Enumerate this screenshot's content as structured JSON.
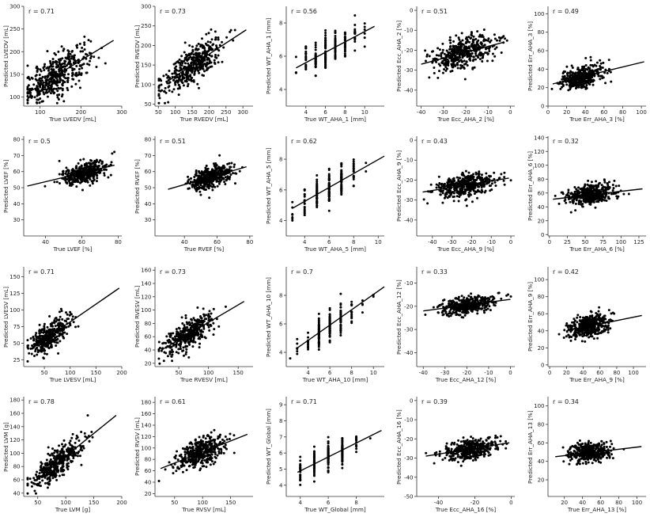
{
  "colors": {
    "point": "#000000",
    "line": "#000000",
    "axis": "#333333",
    "text": "#222222"
  },
  "chart_data": [
    {
      "type": "scatter",
      "r_label": "r = 0.71",
      "xlabel": "True LVEDV [mL]",
      "ylabel": "Predicted LVEDV [mL]",
      "xlim": [
        60,
        300
      ],
      "ylim": [
        80,
        300
      ],
      "xticks": [
        100,
        200,
        300
      ],
      "yticks": [
        100,
        150,
        200,
        250,
        300
      ],
      "n_points": 420,
      "x_center": 140,
      "x_spread": 40,
      "resid_sd": 22,
      "fit_line": {
        "x": [
          75,
          280
        ],
        "y": [
          112,
          225
        ]
      }
    },
    {
      "type": "scatter",
      "r_label": "r = 0.73",
      "xlabel": "True RVEDV [mL]",
      "ylabel": "Predicted RVEDV [mL]",
      "xlim": [
        40,
        330
      ],
      "ylim": [
        45,
        300
      ],
      "xticks": [
        50,
        100,
        150,
        200,
        250,
        300
      ],
      "yticks": [
        50,
        100,
        150,
        200,
        250,
        300
      ],
      "n_points": 420,
      "x_center": 150,
      "x_spread": 45,
      "resid_sd": 22,
      "fit_line": {
        "x": [
          80,
          310
        ],
        "y": [
          110,
          240
        ]
      }
    },
    {
      "type": "scatter",
      "r_label": "r = 0.56",
      "xlabel": "True WT_AHA_1 [mm]",
      "ylabel": "Predicted WT_AHA_1 [mm]",
      "xlim": [
        2,
        12
      ],
      "ylim": [
        3,
        9
      ],
      "xticks": [
        4,
        6,
        8,
        10
      ],
      "yticks": [
        4,
        6,
        8
      ],
      "n_points": 220,
      "x_center": 6.5,
      "x_spread": 1.6,
      "resid_sd": 0.5,
      "discrete_x": true,
      "fit_line": {
        "x": [
          3,
          11
        ],
        "y": [
          5.3,
          7.8
        ]
      }
    },
    {
      "type": "scatter",
      "r_label": "r = 0.51",
      "xlabel": "True Ecc_AHA_2 [%]",
      "ylabel": "Predicted Ecc_AHA_2 [%]",
      "xlim": [
        -42,
        2
      ],
      "ylim": [
        -48,
        2
      ],
      "xticks": [
        -40,
        -30,
        -20,
        -10,
        0
      ],
      "yticks": [
        -40,
        -30,
        -20,
        -10,
        0
      ],
      "n_points": 420,
      "x_center": -21,
      "x_spread": 7,
      "resid_sd": 4,
      "fit_line": {
        "x": [
          -40,
          -3
        ],
        "y": [
          -27,
          -16
        ]
      }
    },
    {
      "type": "scatter",
      "r_label": "r = 0.49",
      "xlabel": "True Err_AHA_3 [%]",
      "ylabel": "Predicted Err_AHA_3 [%]",
      "xlim": [
        0,
        105
      ],
      "ylim": [
        0,
        108
      ],
      "xticks": [
        0,
        20,
        40,
        60,
        80,
        100
      ],
      "yticks": [
        0,
        20,
        40,
        60,
        80,
        100
      ],
      "n_points": 420,
      "x_center": 35,
      "x_spread": 11,
      "resid_sd": 6,
      "fit_line": {
        "x": [
          5,
          103
        ],
        "y": [
          24,
          48
        ]
      }
    },
    {
      "type": "scatter",
      "r_label": "r = 0.5",
      "xlabel": "True LVEF [%]",
      "ylabel": "Predicted LVEF [%]",
      "xlim": [
        28,
        82
      ],
      "ylim": [
        20,
        82
      ],
      "xticks": [
        40,
        60,
        80
      ],
      "yticks": [
        30,
        40,
        50,
        60,
        70,
        80
      ],
      "n_points": 420,
      "x_center": 61,
      "x_spread": 6,
      "resid_sd": 3,
      "fit_line": {
        "x": [
          30,
          78
        ],
        "y": [
          51,
          64
        ]
      }
    },
    {
      "type": "scatter",
      "r_label": "r = 0.51",
      "xlabel": "True RVEF [%]",
      "ylabel": "Predicted RVEF [%]",
      "xlim": [
        22,
        82
      ],
      "ylim": [
        20,
        82
      ],
      "xticks": [
        40,
        60,
        80
      ],
      "yticks": [
        30,
        40,
        50,
        60,
        70,
        80
      ],
      "n_points": 420,
      "x_center": 56,
      "x_spread": 6,
      "resid_sd": 3,
      "fit_line": {
        "x": [
          30,
          78
        ],
        "y": [
          49,
          63
        ]
      }
    },
    {
      "type": "scatter",
      "r_label": "r = 0.62",
      "xlabel": "True WT_AHA_5 [mm]",
      "ylabel": "Predicted WT_AHA_5 [mm]",
      "xlim": [
        2.5,
        10.5
      ],
      "ylim": [
        3,
        9.5
      ],
      "xticks": [
        4,
        6,
        8,
        10
      ],
      "yticks": [
        4,
        6,
        8
      ],
      "n_points": 220,
      "x_center": 6,
      "x_spread": 1.2,
      "resid_sd": 0.5,
      "discrete_x": true,
      "fit_line": {
        "x": [
          3,
          10.5
        ],
        "y": [
          4.8,
          8.2
        ]
      }
    },
    {
      "type": "scatter",
      "r_label": "r = 0.43",
      "xlabel": "True Ecc_AHA_9 [%]",
      "ylabel": "Predicted Ecc_AHA_9 [%]",
      "xlim": [
        -48,
        2
      ],
      "ylim": [
        -48,
        2
      ],
      "xticks": [
        -40,
        -30,
        -20,
        -10,
        0
      ],
      "yticks": [
        -40,
        -30,
        -20,
        -10,
        0
      ],
      "n_points": 420,
      "x_center": -23,
      "x_spread": 7,
      "resid_sd": 3,
      "fit_line": {
        "x": [
          -45,
          -1
        ],
        "y": [
          -26,
          -19
        ]
      }
    },
    {
      "type": "scatter",
      "r_label": "r = 0.32",
      "xlabel": "True Err_AHA_6 [%]",
      "ylabel": "Predicted Err_AHA_6 [%]",
      "xlim": [
        -2,
        135
      ],
      "ylim": [
        -2,
        142
      ],
      "xticks": [
        0,
        25,
        50,
        75,
        100,
        125
      ],
      "yticks": [
        0,
        20,
        40,
        60,
        80,
        100,
        120,
        140
      ],
      "n_points": 420,
      "x_center": 58,
      "x_spread": 16,
      "resid_sd": 7,
      "fit_line": {
        "x": [
          5,
          130
        ],
        "y": [
          51,
          66
        ]
      }
    },
    {
      "type": "scatter",
      "r_label": "r = 0.71",
      "xlabel": "True LVESV [mL]",
      "ylabel": "Predicted LVESV [mL]",
      "xlim": [
        10,
        200
      ],
      "ylim": [
        15,
        165
      ],
      "xticks": [
        50,
        100,
        150,
        200
      ],
      "yticks": [
        25,
        50,
        75,
        100,
        125,
        150
      ],
      "n_points": 380,
      "x_center": 60,
      "x_spread": 18,
      "resid_sd": 10,
      "fit_line": {
        "x": [
          25,
          195
        ],
        "y": [
          42,
          133
        ]
      }
    },
    {
      "type": "scatter",
      "r_label": "r = 0.73",
      "xlabel": "True RVESV [mL]",
      "ylabel": "Predicted RVESV [mL]",
      "xlim": [
        10,
        175
      ],
      "ylim": [
        15,
        165
      ],
      "xticks": [
        50,
        100,
        150
      ],
      "yticks": [
        20,
        40,
        60,
        80,
        100,
        120,
        140,
        160
      ],
      "n_points": 380,
      "x_center": 68,
      "x_spread": 22,
      "resid_sd": 11,
      "fit_line": {
        "x": [
          25,
          160
        ],
        "y": [
          42,
          113
        ]
      }
    },
    {
      "type": "scatter",
      "r_label": "r = 0.7",
      "xlabel": "True WT_AHA_10 [mm]",
      "ylabel": "Predicted WT_AHA_10 [mm]",
      "xlim": [
        2,
        11
      ],
      "ylim": [
        3,
        10
      ],
      "xticks": [
        4,
        6,
        8,
        10
      ],
      "yticks": [
        4,
        6,
        8
      ],
      "n_points": 220,
      "x_center": 6,
      "x_spread": 1.2,
      "resid_sd": 0.5,
      "discrete_x": true,
      "fit_line": {
        "x": [
          3,
          11
        ],
        "y": [
          4.3,
          8.6
        ]
      }
    },
    {
      "type": "scatter",
      "r_label": "r = 0.33",
      "xlabel": "True Ecc_AHA_12 [%]",
      "ylabel": "Predicted Ecc_AHA_12 [%]",
      "xlim": [
        -43,
        2
      ],
      "ylim": [
        -46,
        -3
      ],
      "xticks": [
        -40,
        -30,
        -20,
        -10,
        0
      ],
      "yticks": [
        -40,
        -30,
        -20,
        -10
      ],
      "n_points": 420,
      "x_center": -20,
      "x_spread": 6,
      "resid_sd": 1.8,
      "fit_line": {
        "x": [
          -40,
          0
        ],
        "y": [
          -22,
          -17
        ]
      }
    },
    {
      "type": "scatter",
      "r_label": "r = 0.42",
      "xlabel": "True Err_AHA_9 [%]",
      "ylabel": "Predicted Err_AHA_9 [%]",
      "xlim": [
        -2,
        115
      ],
      "ylim": [
        -2,
        115
      ],
      "xticks": [
        0,
        20,
        40,
        60,
        80,
        100
      ],
      "yticks": [
        0,
        20,
        40,
        60,
        80,
        100
      ],
      "n_points": 420,
      "x_center": 47,
      "x_spread": 13,
      "resid_sd": 6,
      "fit_line": {
        "x": [
          20,
          110
        ],
        "y": [
          40,
          58
        ]
      }
    },
    {
      "type": "scatter",
      "r_label": "r = 0.78",
      "xlabel": "True LVM [g]",
      "ylabel": "Predicted LVM [g]",
      "xlim": [
        25,
        200
      ],
      "ylim": [
        35,
        185
      ],
      "xticks": [
        50,
        100,
        150,
        200
      ],
      "yticks": [
        40,
        60,
        80,
        100,
        120,
        140,
        160,
        180
      ],
      "n_points": 420,
      "x_center": 85,
      "x_spread": 22,
      "resid_sd": 11,
      "fit_line": {
        "x": [
          45,
          190
        ],
        "y": [
          58,
          157
        ]
      }
    },
    {
      "type": "scatter",
      "r_label": "r = 0.61",
      "xlabel": "True RVSV [mL]",
      "ylabel": "Predicted RVSV [mL]",
      "xlim": [
        15,
        190
      ],
      "ylim": [
        15,
        190
      ],
      "xticks": [
        50,
        100,
        150
      ],
      "yticks": [
        20,
        40,
        60,
        80,
        100,
        120,
        140,
        160,
        180
      ],
      "n_points": 420,
      "x_center": 95,
      "x_spread": 22,
      "resid_sd": 12,
      "fit_line": {
        "x": [
          25,
          180
        ],
        "y": [
          64,
          124
        ]
      }
    },
    {
      "type": "scatter",
      "r_label": "r = 0.71",
      "xlabel": "True WT_Global [mm]",
      "ylabel": "Predicted WT_Global [mm]",
      "xlim": [
        3,
        10
      ],
      "ylim": [
        3.3,
        9.5
      ],
      "xticks": [
        4,
        6,
        8
      ],
      "yticks": [
        4,
        5,
        6,
        7,
        8,
        9
      ],
      "n_points": 220,
      "x_center": 6,
      "x_spread": 1,
      "resid_sd": 0.4,
      "discrete_x": true,
      "fit_line": {
        "x": [
          3.8,
          9.8
        ],
        "y": [
          4.8,
          7.4
        ]
      }
    },
    {
      "type": "scatter",
      "r_label": "r = 0.39",
      "xlabel": "True Ecc_AHA_16 [%]",
      "ylabel": "Predicted Ecc_AHA_16 [%]",
      "xlim": [
        -52,
        2
      ],
      "ylim": [
        -50,
        2
      ],
      "xticks": [
        -40,
        -20,
        0
      ],
      "yticks": [
        -50,
        -40,
        -30,
        -20,
        -10,
        0
      ],
      "n_points": 420,
      "x_center": -23,
      "x_spread": 7,
      "resid_sd": 2.5,
      "fit_line": {
        "x": [
          -47,
          -1
        ],
        "y": [
          -29,
          -22
        ]
      }
    },
    {
      "type": "scatter",
      "r_label": "r = 0.34",
      "xlabel": "True Err_AHA_13 [%]",
      "ylabel": "Predicted Err_AHA_13 [%]",
      "xlim": [
        2,
        110
      ],
      "ylim": [
        2,
        110
      ],
      "xticks": [
        20,
        40,
        60,
        80,
        100
      ],
      "yticks": [
        20,
        40,
        60,
        80,
        100
      ],
      "n_points": 420,
      "x_center": 48,
      "x_spread": 12,
      "resid_sd": 5,
      "fit_line": {
        "x": [
          10,
          105
        ],
        "y": [
          45,
          56
        ]
      }
    }
  ]
}
